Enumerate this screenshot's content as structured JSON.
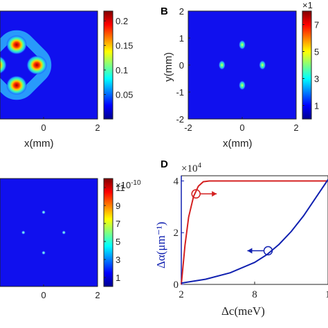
{
  "panels": {
    "a": {
      "xlabel": "x(mm)",
      "xticks": [
        "0",
        "2"
      ],
      "colorbar_ticks": [
        "0.2",
        "0.15",
        "0.1",
        "0.05"
      ]
    },
    "b": {
      "letter": "B",
      "xlabel": "x(mm)",
      "ylabel": "y(mm)",
      "xticks": [
        "-2",
        "0",
        "2"
      ],
      "yticks": [
        "2",
        "1",
        "0",
        "-1",
        "-2"
      ],
      "colorbar_exponent": "×1",
      "colorbar_ticks": [
        "7",
        "5",
        "3",
        "1"
      ]
    },
    "c": {
      "xticks": [
        "0",
        "2"
      ],
      "colorbar_exponent": "×10",
      "colorbar_exponent_power": "-10",
      "colorbar_ticks": [
        "11",
        "9",
        "7",
        "5",
        "3",
        "1"
      ]
    },
    "d": {
      "letter": "D",
      "y_exponent": "×10",
      "y_exponent_power": "4",
      "yticks": [
        "4",
        "2",
        "0"
      ],
      "xticks": [
        "2",
        "8",
        "1"
      ],
      "ylabel": "Δα(μm⁻¹)",
      "xlabel": "Δc(meV)"
    }
  },
  "chart_data": [
    {
      "type": "heatmap",
      "panel": "A",
      "description_values": "ring of four bright spots",
      "spots": [
        [
          0.0,
          0.75
        ],
        [
          -0.75,
          0.0
        ],
        [
          0.75,
          0.0
        ],
        [
          0.0,
          -0.75
        ]
      ],
      "xlim": [
        -2,
        2
      ],
      "colorbar_range": [
        0,
        0.22
      ]
    },
    {
      "type": "heatmap",
      "panel": "B",
      "spots": [
        [
          0.0,
          0.75
        ],
        [
          -0.75,
          0.0
        ],
        [
          0.75,
          0.0
        ],
        [
          0.0,
          -0.75
        ]
      ],
      "xlim": [
        -2,
        2
      ],
      "ylim": [
        -2,
        2
      ],
      "colorbar_range": [
        0,
        8
      ]
    },
    {
      "type": "heatmap",
      "panel": "C",
      "spots": [
        [
          0.0,
          0.75
        ],
        [
          -0.75,
          0.0
        ],
        [
          0.75,
          0.0
        ],
        [
          0.0,
          -0.75
        ]
      ],
      "xlim": [
        -2,
        2
      ],
      "colorbar_range": [
        0,
        12
      ]
    },
    {
      "type": "line",
      "panel": "D",
      "xlim": [
        2,
        14
      ],
      "ylim": [
        0,
        4.2
      ],
      "series": [
        {
          "color": "#d42020",
          "x": [
            2,
            2.3,
            2.6,
            3.0,
            3.4,
            3.8,
            4.3,
            5,
            6,
            8,
            10,
            12,
            14
          ],
          "values": [
            0,
            1.5,
            2.6,
            3.4,
            3.8,
            3.97,
            4.0,
            4.0,
            4.0,
            4.0,
            4.0,
            4.0,
            4.0
          ]
        },
        {
          "color": "#1020b0",
          "x": [
            2,
            4,
            6,
            8,
            9,
            10,
            11,
            12,
            13,
            14
          ],
          "values": [
            0.05,
            0.2,
            0.45,
            0.85,
            1.15,
            1.55,
            2.05,
            2.65,
            3.35,
            4.05
          ]
        }
      ],
      "markers": [
        {
          "series": 0,
          "x": 3.2,
          "y": 3.5,
          "arrow": "right"
        },
        {
          "series": 1,
          "x": 9.1,
          "y": 1.3,
          "arrow": "left"
        }
      ]
    }
  ]
}
